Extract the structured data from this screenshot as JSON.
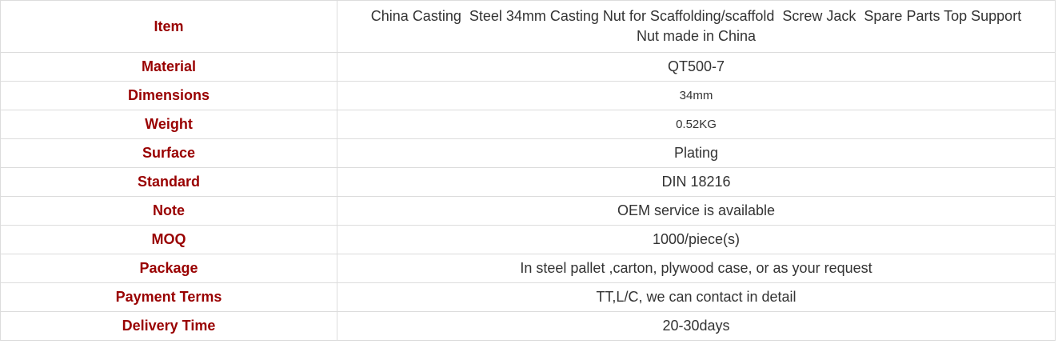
{
  "table": {
    "rows": [
      [
        "Item",
        "China Casting  Steel 34mm Casting Nut for Scaffolding/scaffold  Screw Jack  Spare Parts Top Support Nut made in China"
      ],
      [
        "Material",
        "QT500-7"
      ],
      [
        "Dimensions",
        "34mm"
      ],
      [
        "Weight",
        "0.52KG"
      ],
      [
        "Surface",
        "Plating"
      ],
      [
        "Standard",
        "DIN 18216"
      ],
      [
        "Note",
        "OEM service is available"
      ],
      [
        "MOQ",
        "1000/piece(s)"
      ],
      [
        "Package",
        "In steel pallet ,carton, plywood case, or as your request"
      ],
      [
        "Payment Terms",
        "TT,L/C, we can contact in detail"
      ],
      [
        "Delivery Time",
        "20-30days"
      ]
    ]
  }
}
